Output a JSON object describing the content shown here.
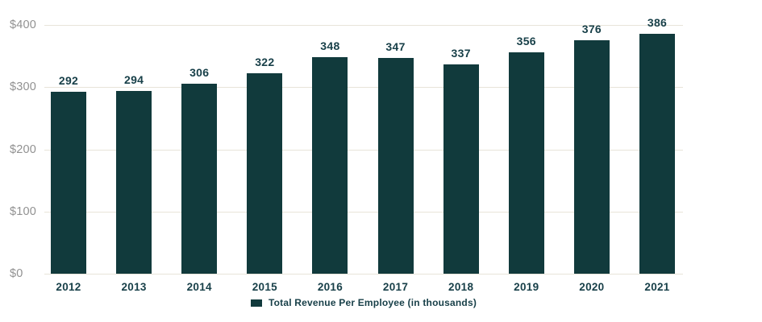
{
  "chart_data": {
    "type": "bar",
    "title": "",
    "xlabel": "",
    "ylabel": "",
    "categories": [
      "2012",
      "2013",
      "2014",
      "2015",
      "2016",
      "2017",
      "2018",
      "2019",
      "2020",
      "2021"
    ],
    "series": [
      {
        "name": "Total Revenue Per Employee (in thousands)",
        "values": [
          292,
          294,
          306,
          322,
          348,
          347,
          337,
          356,
          376,
          386
        ]
      }
    ],
    "value_labels_shown": true,
    "ylim": [
      0,
      400
    ],
    "yticks": [
      0,
      100,
      200,
      300,
      400
    ],
    "ytick_labels": [
      "$0",
      "$100",
      "$200",
      "$300",
      "$400"
    ],
    "grid": true,
    "legend_position": "bottom-center",
    "colors": {
      "bar": "#113a3c",
      "text": "#173f48",
      "ytick_text": "#919191",
      "gridline": "#e8e4d9",
      "background": "#ffffff"
    }
  }
}
